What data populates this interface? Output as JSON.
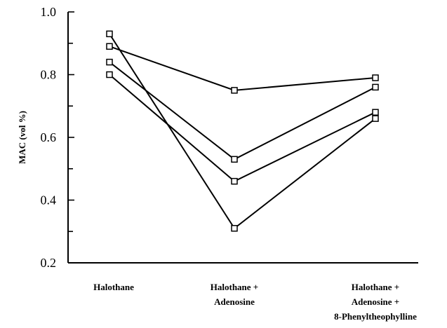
{
  "chart_data": {
    "type": "line",
    "title": "",
    "ylabel": "MAC (vol %)",
    "xlabel": "",
    "ylim": [
      0.2,
      1.0
    ],
    "yticks_labeled": [
      "0.2",
      "0.4",
      "0.6",
      "0.8",
      "1.0"
    ],
    "ytick_values": [
      0.2,
      0.4,
      0.6,
      0.8,
      1.0
    ],
    "categories": [
      [
        "Halothane"
      ],
      [
        "Halothane +",
        "Adenosine"
      ],
      [
        "Halothane +",
        "Adenosine +",
        "8-Phenyltheophylline"
      ]
    ],
    "series": [
      {
        "values": [
          0.93,
          0.31,
          0.66
        ]
      },
      {
        "values": [
          0.89,
          0.75,
          0.79
        ]
      },
      {
        "values": [
          0.84,
          0.53,
          0.76
        ]
      },
      {
        "values": [
          0.8,
          0.46,
          0.68
        ]
      }
    ],
    "marker": "open-square",
    "line_color": "#000000",
    "grid": false
  }
}
